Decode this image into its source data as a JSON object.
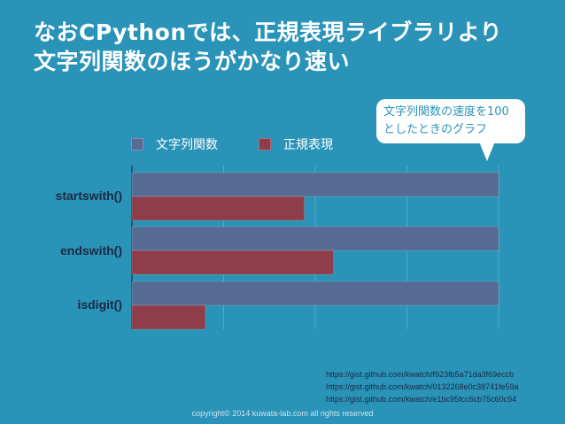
{
  "title": {
    "line1": "なおCPythonでは、正規表現ライブラリより",
    "line2": "文字列関数のほうがかなり速い"
  },
  "callout": {
    "line1": "文字列関数の速度を100",
    "line2": "としたときのグラフ"
  },
  "chart_data": {
    "type": "bar",
    "orientation": "horizontal",
    "categories": [
      "startswith()",
      "endswith()",
      "isdigit()"
    ],
    "series": [
      {
        "name": "文字列関数",
        "color": "#566c94",
        "values": [
          100,
          100,
          100
        ]
      },
      {
        "name": "正規表現",
        "color": "#8f3d4b",
        "values": [
          47,
          55,
          20
        ]
      }
    ],
    "xlim": [
      0,
      100
    ],
    "grid": true,
    "legend": "top"
  },
  "links": [
    "https://gist.github.com/kwatch/f923fb5a71da3f69eccb",
    "https://gist.github.com/kwatch/0132268e0c38741fe59a",
    "https://gist.github.com/kwatch/e1bc95fcc6cb75c60c94"
  ],
  "copyright": "copyright© 2014 kuwata-lab.com all rights reserved"
}
